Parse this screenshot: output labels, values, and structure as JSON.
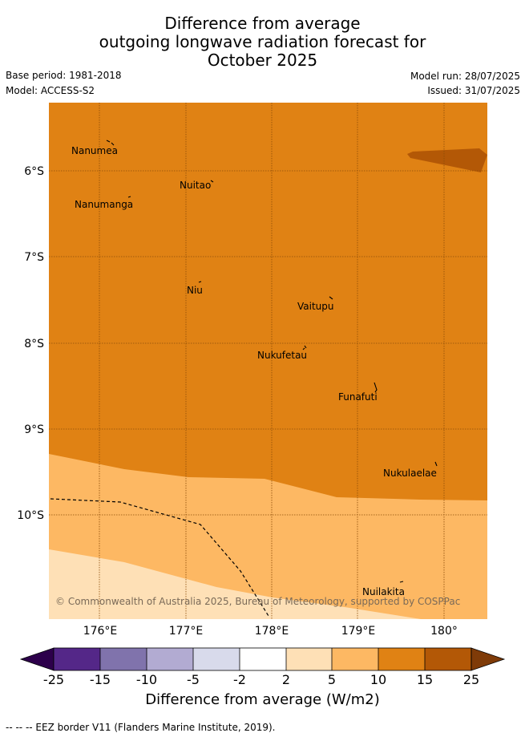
{
  "header": {
    "title_lines": [
      "Difference from average",
      "outgoing longwave radiation forecast for",
      "October 2025"
    ],
    "base_period": "Base period: 1981-2018",
    "model": "Model: ACCESS-S2",
    "model_run": "Model run: 28/07/2025",
    "issued": "Issued: 31/07/2025"
  },
  "map": {
    "lon_range": [
      175.45,
      180.5
    ],
    "lat_range": [
      -11.2,
      -5.2
    ],
    "lon_ticks": [
      "176°E",
      "177°E",
      "178°E",
      "179°E",
      "180°"
    ],
    "lat_ticks": [
      "6°S",
      "7°S",
      "8°S",
      "9°S",
      "10°S"
    ],
    "islands": [
      "Nanumea",
      "Nuitao",
      "Nanumanga",
      "Niu",
      "Vaitupu",
      "Nukufetau",
      "Funafuti",
      "Nukulaelae",
      "Nuilakita"
    ],
    "copyright": "© Commonwealth of Australia 2025, Bureau of Meteorology, supported by COSPPac",
    "colors": {
      "band_10_15": "#e08214",
      "band_15_25": "#b35806",
      "band_5_10": "#fdb863",
      "band_2_5": "#fee0b6",
      "grid": "#8a4c08"
    }
  },
  "colorbar": {
    "ticks": [
      "-25",
      "-15",
      "-10",
      "-5",
      "-2",
      "2",
      "5",
      "10",
      "15",
      "25"
    ],
    "colors": [
      "#2d004b",
      "#542788",
      "#8073ac",
      "#b2abd2",
      "#d8daeb",
      "#ffffff",
      "#fee0b6",
      "#fdb863",
      "#e08214",
      "#b35806",
      "#7f3b08"
    ],
    "label": "Difference from average (W/m2)"
  },
  "footer": "--  --  -- EEZ border V11 (Flanders Marine Institute, 2019)."
}
